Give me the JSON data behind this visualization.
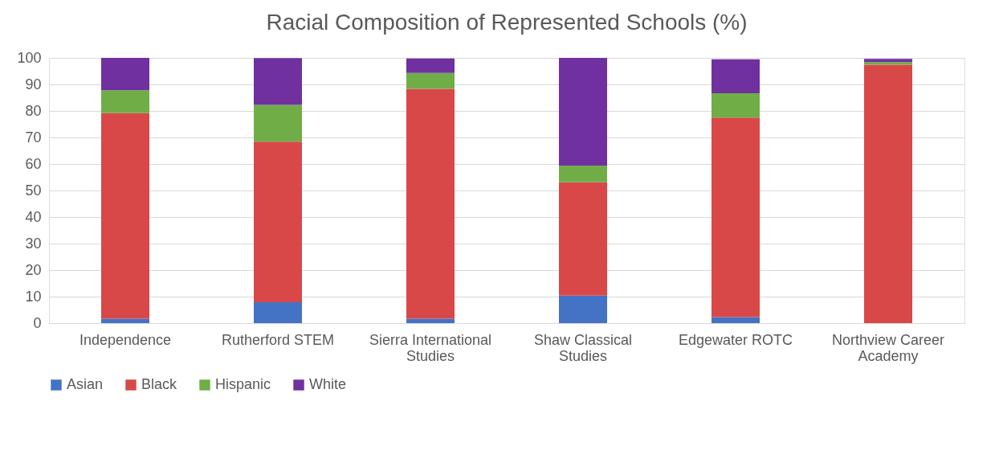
{
  "chart_data": {
    "type": "bar",
    "title": "Racial Composition of Represented Schools (%)",
    "stacked": true,
    "categories": [
      "Independence",
      "Rutherford STEM",
      "Sierra International Studies",
      "Shaw Classical Studies",
      "Edgewater ROTC",
      "Northview Career Academy"
    ],
    "series": [
      {
        "name": "Asian",
        "color": "#4472c4",
        "values": [
          1.7,
          7.9,
          1.7,
          10.4,
          2.3,
          0
        ]
      },
      {
        "name": "Black",
        "color": "#d84848",
        "values": [
          77.5,
          60.5,
          86.6,
          42.7,
          75.2,
          97.4
        ]
      },
      {
        "name": "Hispanic",
        "color": "#70ad47",
        "values": [
          8.6,
          13.9,
          6.0,
          6.3,
          9.2,
          1.0
        ]
      },
      {
        "name": "White",
        "color": "#7030a0",
        "values": [
          12.2,
          17.6,
          5.5,
          40.6,
          12.8,
          1.2
        ]
      }
    ],
    "ylim": [
      0,
      100
    ],
    "yticks": [
      0,
      10,
      20,
      30,
      40,
      50,
      60,
      70,
      80,
      90,
      100
    ],
    "grid": "y",
    "legend": "bottom"
  }
}
